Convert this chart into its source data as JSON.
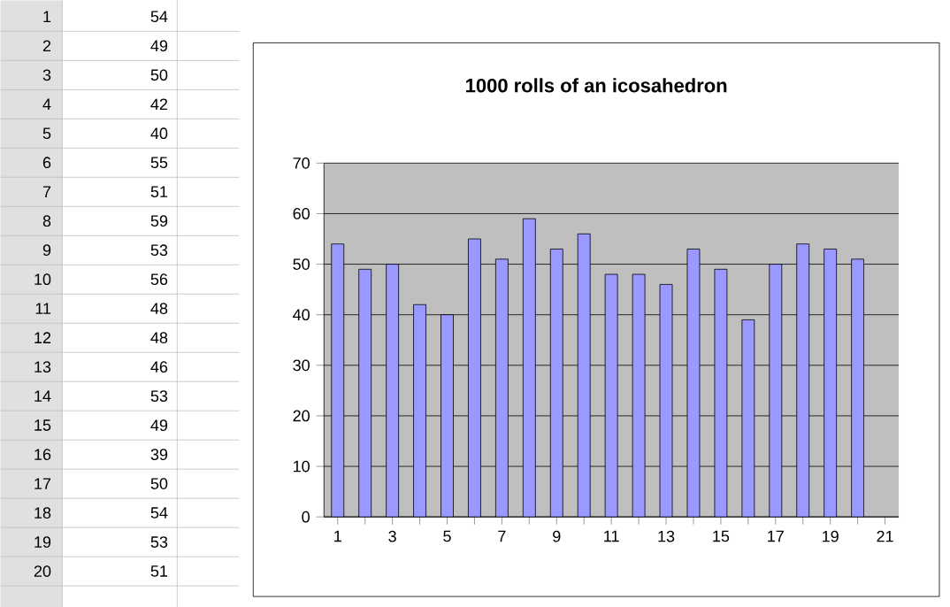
{
  "chart_data": {
    "type": "bar",
    "title": "1000 rolls of an icosahedron",
    "categories": [
      "1",
      null,
      "3",
      null,
      "5",
      null,
      "7",
      null,
      "9",
      null,
      "11",
      null,
      "13",
      null,
      "15",
      null,
      "17",
      null,
      "19",
      null,
      "21"
    ],
    "values": [
      54,
      49,
      50,
      42,
      40,
      55,
      51,
      59,
      53,
      56,
      48,
      48,
      46,
      53,
      49,
      39,
      50,
      54,
      53,
      51,
      null
    ],
    "color": "#9999ff",
    "ylim": [
      0,
      70
    ],
    "yticks": [
      0,
      10,
      20,
      30,
      40,
      50,
      60,
      70
    ],
    "grid": "y",
    "annotations": [
      "1",
      "54",
      "2",
      "49",
      "3",
      "50",
      "4",
      "42",
      "5",
      "40",
      "6",
      "55",
      "7",
      "51",
      "8",
      "59",
      "9",
      "53",
      "10",
      "56",
      "11",
      "48",
      "12",
      "48",
      "13",
      "46",
      "14",
      "53",
      "15",
      "49",
      "16",
      "39",
      "17",
      "50",
      "18",
      "54",
      "19",
      "53",
      "20",
      "51"
    ]
  }
}
